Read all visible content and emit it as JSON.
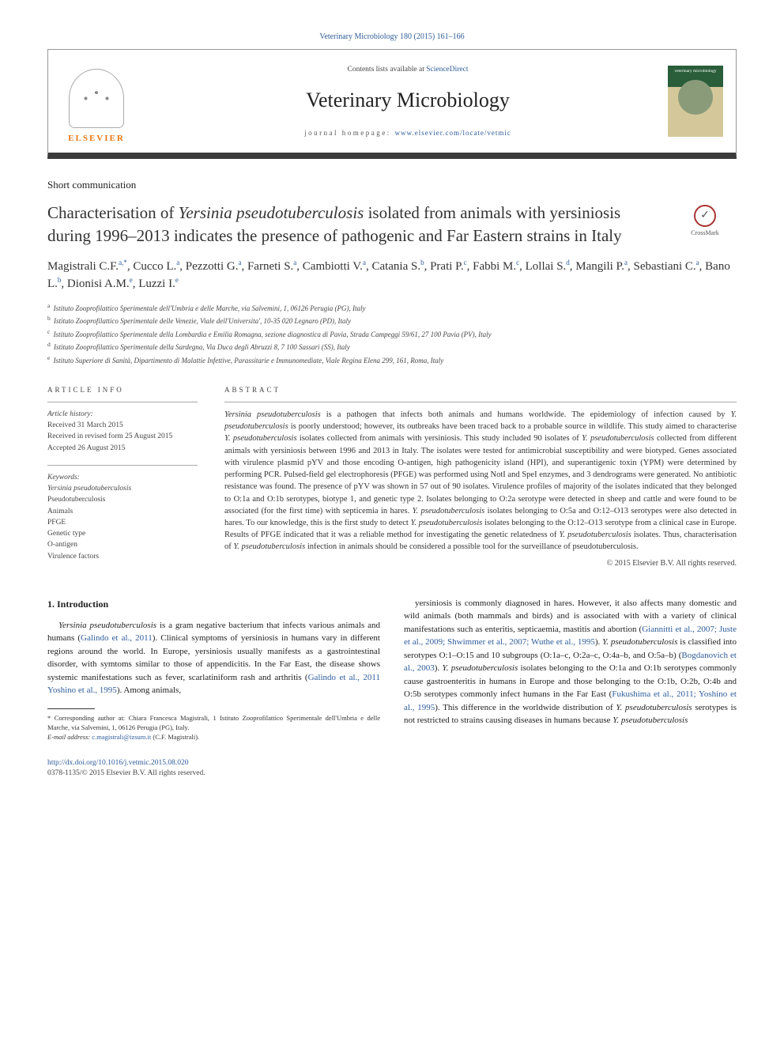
{
  "journal_ref": "Veterinary Microbiology 180 (2015) 161–166",
  "header": {
    "contents_prefix": "Contents lists available at ",
    "contents_link": "ScienceDirect",
    "journal_name": "Veterinary Microbiology",
    "homepage_prefix": "journal homepage: ",
    "homepage_url": "www.elsevier.com/locate/vetmic",
    "publisher": "ELSEVIER",
    "cover_title": "veterinary microbiology"
  },
  "article_type": "Short communication",
  "title_html": "Characterisation of <em>Yersinia pseudotuberculosis</em> isolated from animals with yersiniosis during 1996–2013 indicates the presence of pathogenic and Far Eastern strains in Italy",
  "crossmark": "CrossMark",
  "authors_html": "Magistrali C.F.<sup>a,*</sup>, Cucco L.<sup>a</sup>, Pezzotti G.<sup>a</sup>, Farneti S.<sup>a</sup>, Cambiotti V.<sup>a</sup>, Catania S.<sup>b</sup>, Prati P.<sup>c</sup>, Fabbi M.<sup>c</sup>, Lollai S.<sup>d</sup>, Mangili P.<sup>a</sup>, Sebastiani C.<sup>a</sup>, Bano L.<sup>b</sup>, Dionisi A.M.<sup>e</sup>, Luzzi I.<sup>e</sup>",
  "affiliations": [
    {
      "sup": "a",
      "text": "Istituto Zooprofilattico Sperimentale dell'Umbria e delle Marche, via Salvemini, 1, 06126 Perugia (PG), Italy"
    },
    {
      "sup": "b",
      "text": "Istituto Zooprofilattico Sperimentale delle Venezie, Viale dell'Universita', 10-35 020 Legnaro (PD), Italy"
    },
    {
      "sup": "c",
      "text": "Istituto Zooprofilattico Sperimentale della Lombardia e Emilia Romagna, sezione diagnostica di Pavia, Strada Campeggi 59/61, 27 100 Pavia (PV), Italy"
    },
    {
      "sup": "d",
      "text": "Istituto Zooprofilattico Sperimentale della Sardegna, Via Duca degli Abruzzi 8, 7 100 Sassari (SS), Italy"
    },
    {
      "sup": "e",
      "text": "Istituto Superiore di Sanità, Dipartimento di Malattie Infettive, Parassitarie e Immunomediate, Viale Regina Elena 299, 161, Roma, Italy"
    }
  ],
  "info": {
    "heading": "ARTICLE INFO",
    "history_label": "Article history:",
    "history": [
      "Received 31 March 2015",
      "Received in revised form 25 August 2015",
      "Accepted 26 August 2015"
    ],
    "keywords_label": "Keywords:",
    "keywords": [
      "Yersinia pseudotuberculosis",
      "Pseudotuberculosis",
      "Animals",
      "PFGE",
      "Genetic type",
      "O-antigen",
      "Virulence factors"
    ]
  },
  "abstract": {
    "heading": "ABSTRACT",
    "text_html": "<em>Yersinia pseudotuberculosis</em> is a pathogen that infects both animals and humans worldwide. The epidemiology of infection caused by <em>Y. pseudotuberculosis</em> is poorly understood; however, its outbreaks have been traced back to a probable source in wildlife. This study aimed to characterise <em>Y. pseudotuberculosis</em> isolates collected from animals with yersiniosis. This study included 90 isolates of <em>Y. pseudotuberculosis</em> collected from different animals with yersiniosis between 1996 and 2013 in Italy. The isolates were tested for antimicrobial susceptibility and were biotyped. Genes associated with virulence plasmid pYV and those encoding O-antigen, high pathogenicity island (HPI), and superantigenic toxin (YPM) were determined by performing PCR. Pulsed-field gel electrophoresis (PFGE) was performed using NotI and SpeI enzymes, and 3 dendrograms were generated. No antibiotic resistance was found. The presence of pYV was shown in 57 out of 90 isolates. Virulence profiles of majority of the isolates indicated that they belonged to O:1a and O:1b serotypes, biotype 1, and genetic type 2. Isolates belonging to O:2a serotype were detected in sheep and cattle and were found to be associated (for the first time) with septicemia in hares. <em>Y. pseudotuberculosis</em> isolates belonging to O:5a and O:12–O13 serotypes were also detected in hares. To our knowledge, this is the first study to detect <em>Y. pseudotuberculosis</em> isolates belonging to the O:12–O13 serotype from a clinical case in Europe. Results of PFGE indicated that it was a reliable method for investigating the genetic relatedness of <em>Y. pseudotuberculosis</em> isolates. Thus, characterisation of <em>Y. pseudotuberculosis</em> infection in animals should be considered a possible tool for the surveillance of pseudotuberculosis.",
    "copyright": "© 2015 Elsevier B.V. All rights reserved."
  },
  "body": {
    "heading": "1. Introduction",
    "col1_html": "<em>Yersinia pseudotuberculosis</em> is a gram negative bacterium that infects various animals and humans (<a href='#'>Galindo et al., 2011</a>). Clinical symptoms of yersiniosis in humans vary in different regions around the world. In Europe, yersiniosis usually manifests as a gastrointestinal disorder, with symtoms similar to those of appendicitis. In the Far East, the disease shows systemic manifestations such as fever, scarlatiniform rash and arthritis (<a href='#'>Galindo et al., 2011 Yoshino et al., 1995</a>). Among animals,",
    "col2_html": "yersiniosis is commonly diagnosed in hares. However, it also affects many domestic and wild animals (both mammals and birds) and is associated with with a variety of clinical manifestations such as enteritis, septicaemia, mastitis and abortion (<a href='#'>Giannitti et al., 2007; Juste et al., 2009; Shwimmer et al., 2007; Wuthe et al., 1995</a>). <em>Y. pseudotuberculosis</em> is classified into serotypes O:1–O:15 and 10 subgroups (O:1a–c, O:2a–c, O:4a–b, and O:5a–b) (<a href='#'>Bogdanovich et al., 2003</a>). <em>Y. pseudotuberculosis</em> isolates belonging to the O:1a and O:1b serotypes commonly cause gastroenteritis in humans in Europe and those belonging to the O:1b, O:2b, O:4b and O:5b serotypes commonly infect humans in the Far East (<a href='#'>Fukushima et al., 2011; Yoshino et al., 1995</a>). This difference in the worldwide distribution of <em>Y. pseudotuberculosis</em> serotypes is not restricted to strains causing diseases in humans because <em>Y. pseudotuberculosis</em>"
  },
  "footnote": {
    "corresponding": "* Corresponding author at: Chiara Francesca Magistrali, 1 Istituto Zooprofilattico Sperimentale dell'Umbria e delle Marche, via Salvemini, 1, 06126 Perugia (PG), Italy.",
    "email_label": "E-mail address: ",
    "email": "c.magistrali@izsum.it",
    "email_suffix": " (C.F. Magistrali)."
  },
  "footer": {
    "doi": "http://dx.doi.org/10.1016/j.vetmic.2015.08.020",
    "issn_line": "0378-1135/© 2015 Elsevier B.V. All rights reserved."
  },
  "colors": {
    "link": "#2e5c9a",
    "publisher": "#e67817",
    "border_dark": "#3a3a3a"
  }
}
